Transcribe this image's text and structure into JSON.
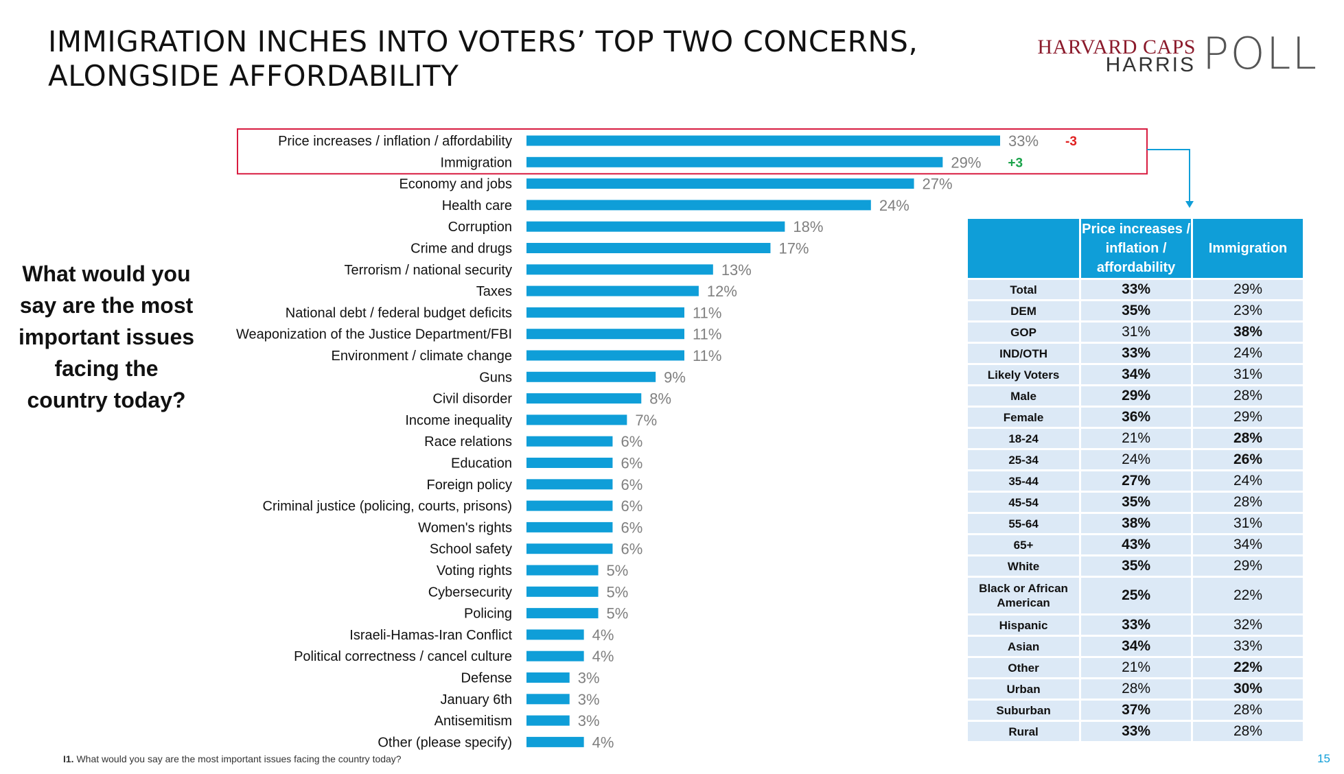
{
  "title_lines": [
    "IMMIGRATION INCHES INTO VOTERS’ TOP TWO CONCERNS,",
    "ALONGSIDE AFFORDABILITY"
  ],
  "logo": {
    "line1": "HARVARD CAPS",
    "line2": "HARRIS",
    "line3": "POLL"
  },
  "question_lines": [
    "What would you",
    "say are the most",
    "important issues",
    "facing the",
    "country today?"
  ],
  "colors": {
    "bar": "#0f9ed8",
    "highlight_box": "#d81b3f",
    "negative_change": "#e02020",
    "positive_change": "#1aa34a",
    "table_header": "#0f9ed8",
    "table_cell": "#dce9f6",
    "value_label": "#7f7f7f"
  },
  "chart_data": {
    "type": "bar",
    "orientation": "horizontal",
    "categories": [
      "Price increases / inflation / affordability",
      "Immigration",
      "Economy and jobs",
      "Health care",
      "Corruption",
      "Crime and drugs",
      "Terrorism / national security",
      "Taxes",
      "National debt / federal budget deficits",
      "Weaponization of the Justice Department/FBI",
      "Environment / climate change",
      "Guns",
      "Civil disorder",
      "Income inequality",
      "Race relations",
      "Education",
      "Foreign policy",
      "Criminal justice (policing, courts, prisons)",
      "Women's rights",
      "School safety",
      "Voting rights",
      "Cybersecurity",
      "Policing",
      "Israeli-Hamas-Iran Conflict",
      "Political correctness / cancel culture",
      "Defense",
      "January 6th",
      "Antisemitism",
      "Other (please specify)"
    ],
    "values": [
      33,
      29,
      27,
      24,
      18,
      17,
      13,
      12,
      11,
      11,
      11,
      9,
      8,
      7,
      6,
      6,
      6,
      6,
      6,
      6,
      5,
      5,
      5,
      4,
      4,
      3,
      3,
      3,
      4
    ],
    "value_labels": [
      "33%",
      "29%",
      "27%",
      "24%",
      "18%",
      "17%",
      "13%",
      "12%",
      "11%",
      "11%",
      "11%",
      "9%",
      "8%",
      "7%",
      "6%",
      "6%",
      "6%",
      "6%",
      "6%",
      "6%",
      "5%",
      "5%",
      "5%",
      "4%",
      "4%",
      "3%",
      "3%",
      "3%",
      "4%"
    ],
    "changes": [
      {
        "category": "Price increases / inflation / affordability",
        "label": "-3"
      },
      {
        "category": "Immigration",
        "label": "+3"
      }
    ],
    "highlighted": [
      "Price increases / inflation / affordability",
      "Immigration"
    ],
    "xlim": [
      0,
      33
    ]
  },
  "subgroup_table": {
    "headers": [
      "",
      "Price increases / inflation / affordability",
      "Immigration"
    ],
    "header_price_lines": [
      "Price increases /",
      "inflation /",
      "affordability"
    ],
    "rows": [
      {
        "group": "Total",
        "price": "33%",
        "immigration": "29%",
        "bold": "price"
      },
      {
        "group": "DEM",
        "price": "35%",
        "immigration": "23%",
        "bold": "price"
      },
      {
        "group": "GOP",
        "price": "31%",
        "immigration": "38%",
        "bold": "immigration"
      },
      {
        "group": "IND/OTH",
        "price": "33%",
        "immigration": "24%",
        "bold": "price"
      },
      {
        "group": "Likely Voters",
        "price": "34%",
        "immigration": "31%",
        "bold": "price"
      },
      {
        "group": "Male",
        "price": "29%",
        "immigration": "28%",
        "bold": "price"
      },
      {
        "group": "Female",
        "price": "36%",
        "immigration": "29%",
        "bold": "price"
      },
      {
        "group": "18-24",
        "price": "21%",
        "immigration": "28%",
        "bold": "immigration"
      },
      {
        "group": "25-34",
        "price": "24%",
        "immigration": "26%",
        "bold": "immigration"
      },
      {
        "group": "35-44",
        "price": "27%",
        "immigration": "24%",
        "bold": "price"
      },
      {
        "group": "45-54",
        "price": "35%",
        "immigration": "28%",
        "bold": "price"
      },
      {
        "group": "55-64",
        "price": "38%",
        "immigration": "31%",
        "bold": "price"
      },
      {
        "group": "65+",
        "price": "43%",
        "immigration": "34%",
        "bold": "price"
      },
      {
        "group": "White",
        "price": "35%",
        "immigration": "29%",
        "bold": "price"
      },
      {
        "group": "Black or African American",
        "price": "25%",
        "immigration": "22%",
        "bold": "price"
      },
      {
        "group": "Hispanic",
        "price": "33%",
        "immigration": "32%",
        "bold": "price"
      },
      {
        "group": "Asian",
        "price": "34%",
        "immigration": "33%",
        "bold": "price"
      },
      {
        "group": "Other",
        "price": "21%",
        "immigration": "22%",
        "bold": "immigration"
      },
      {
        "group": "Urban",
        "price": "28%",
        "immigration": "30%",
        "bold": "immigration"
      },
      {
        "group": "Suburban",
        "price": "37%",
        "immigration": "28%",
        "bold": "price"
      },
      {
        "group": "Rural",
        "price": "33%",
        "immigration": "28%",
        "bold": "price"
      }
    ]
  },
  "footnote": {
    "prefix": "I1.",
    "text": " What would you say are the most important issues facing the country today?"
  },
  "page_number": "15"
}
